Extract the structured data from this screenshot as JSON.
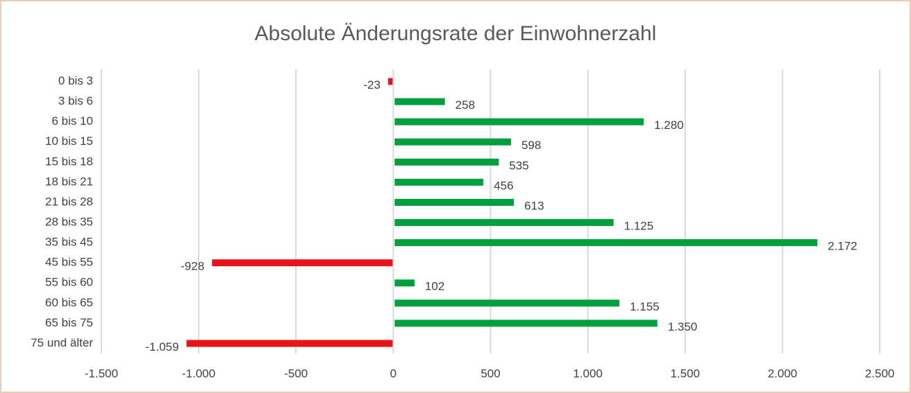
{
  "chart_data": {
    "type": "hbar",
    "title": "Absolute Änderungsrate der Einwohnerzahl",
    "categories": [
      "0 bis 3",
      "3 bis 6",
      "6 bis 10",
      "10 bis 15",
      "15 bis 18",
      "18 bis 21",
      "21 bis 28",
      "28 bis 35",
      "35 bis 45",
      "45 bis 55",
      "55 bis 60",
      "60 bis 65",
      "65 bis 75",
      "75 und älter"
    ],
    "values": [
      -23,
      258,
      1280,
      598,
      535,
      456,
      613,
      1125,
      2172,
      -928,
      102,
      1155,
      1350,
      -1059
    ],
    "value_labels": [
      "-23",
      "258",
      "1.280",
      "598",
      "535",
      "456",
      "613",
      "1.125",
      "2.172",
      "-928",
      "102",
      "1.155",
      "1.350",
      "-1.059"
    ],
    "positive_color": "#00a03e",
    "negative_color": "#e8141b",
    "xlim": [
      -1500,
      2500
    ],
    "xticks": [
      {
        "value": -1500,
        "label": "-1.500"
      },
      {
        "value": -1000,
        "label": "-1.000"
      },
      -500,
      0,
      500,
      {
        "value": 1000,
        "label": "1.000"
      },
      {
        "value": 1500,
        "label": "1.500"
      },
      {
        "value": 2000,
        "label": "2.000"
      },
      {
        "value": 2500,
        "label": "2.500"
      }
    ],
    "grid": true
  }
}
